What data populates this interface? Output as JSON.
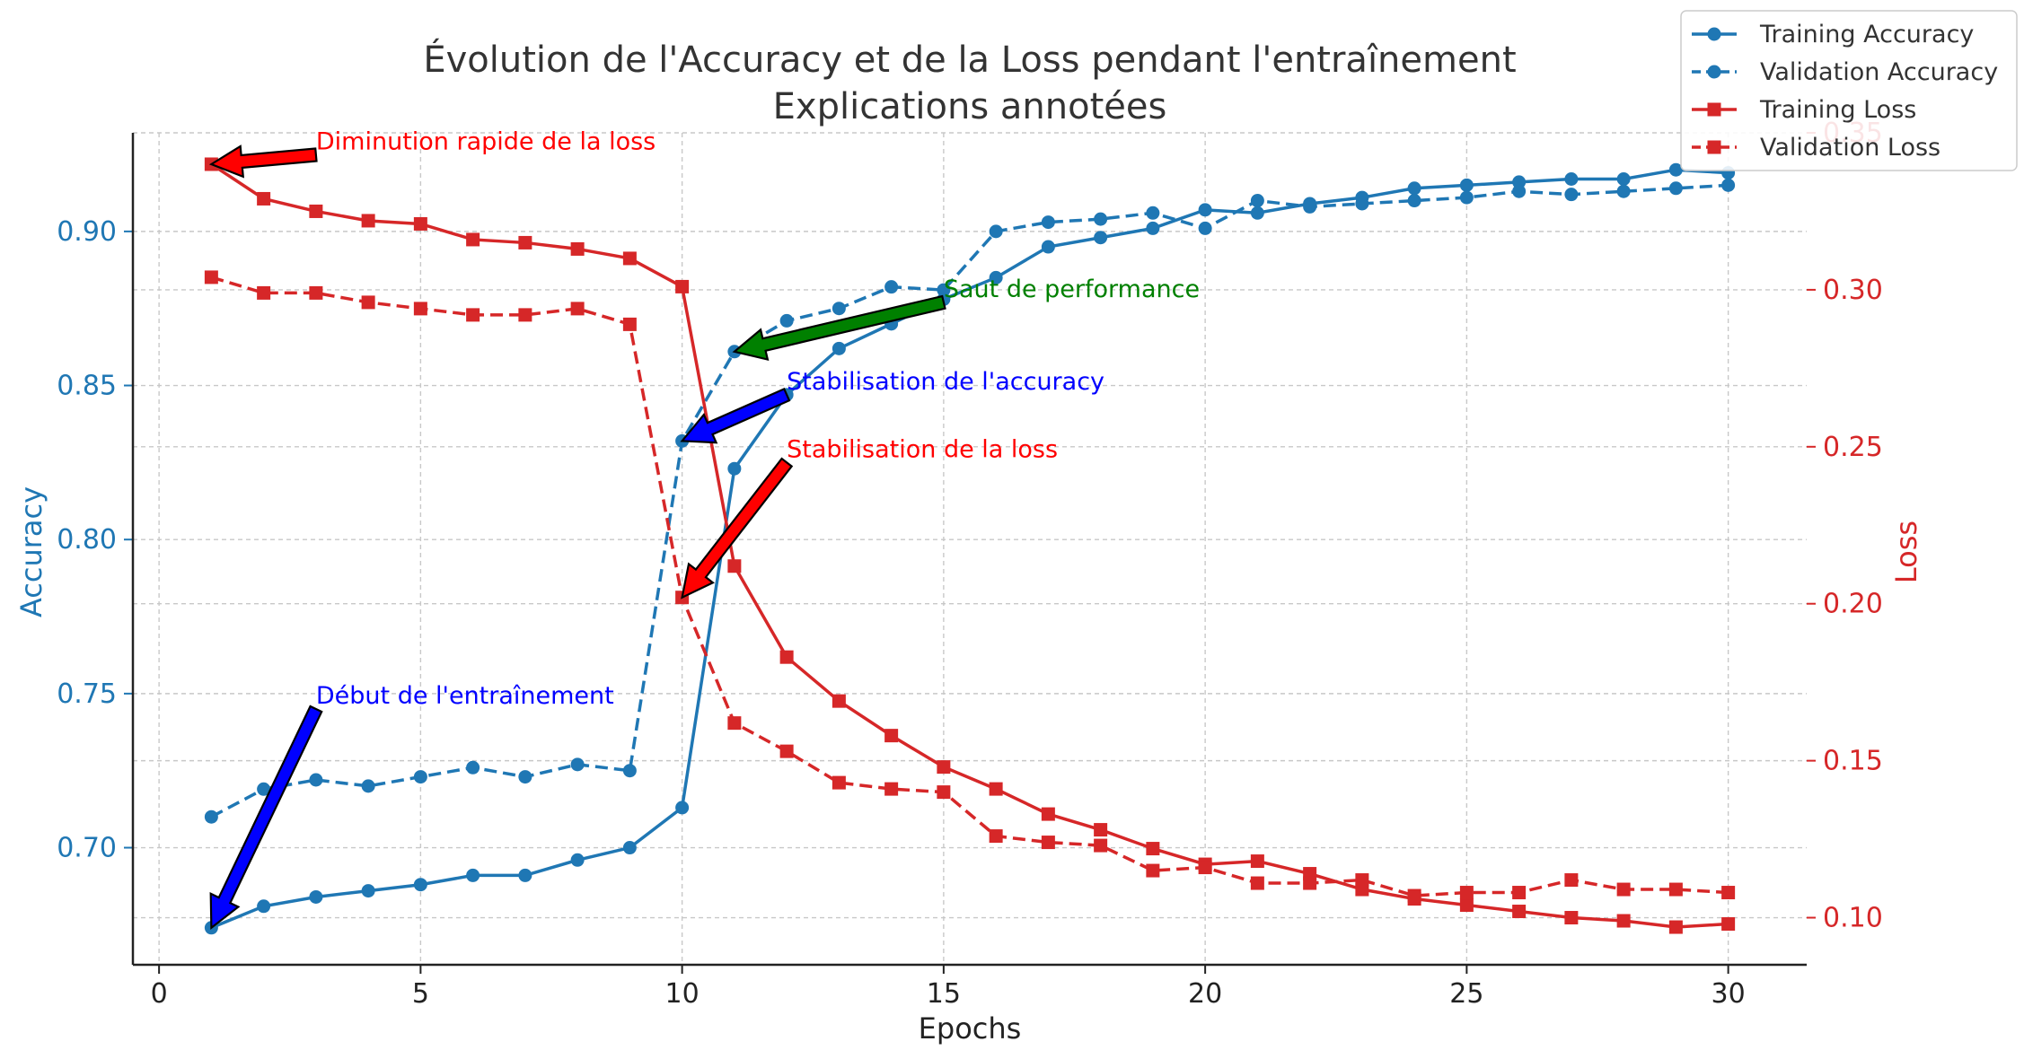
{
  "chart_data": {
    "type": "line",
    "title": "Évolution de l'Accuracy et de la Loss pendant l'entraînement",
    "subtitle": "Explications annotées",
    "xlabel": "Epochs",
    "ylabel_left": "Accuracy",
    "ylabel_right": "Loss",
    "xlim": [
      -0.5,
      31.5
    ],
    "ylim_left": [
      0.662,
      0.932
    ],
    "ylim_right": [
      0.085,
      0.35
    ],
    "xticks": [
      0,
      5,
      10,
      15,
      20,
      25,
      30
    ],
    "yticks_left": [
      "0.70",
      "0.75",
      "0.80",
      "0.85",
      "0.90"
    ],
    "yticks_right": [
      "0.10",
      "0.15",
      "0.20",
      "0.25",
      "0.30",
      "0.35"
    ],
    "grid": true,
    "legend_position": "top-right",
    "x": [
      1,
      2,
      3,
      4,
      5,
      6,
      7,
      8,
      9,
      10,
      11,
      12,
      13,
      14,
      15,
      16,
      17,
      18,
      19,
      20,
      21,
      22,
      23,
      24,
      25,
      26,
      27,
      28,
      29,
      30
    ],
    "series": [
      {
        "name": "Training Accuracy",
        "axis": "left",
        "style": "solid",
        "marker": "circle",
        "color": "#1f77b4",
        "values": [
          0.674,
          0.681,
          0.684,
          0.686,
          0.688,
          0.691,
          0.691,
          0.696,
          0.7,
          0.713,
          0.823,
          0.847,
          0.862,
          0.87,
          0.878,
          0.885,
          0.895,
          0.898,
          0.901,
          0.907,
          0.906,
          0.909,
          0.911,
          0.914,
          0.915,
          0.916,
          0.917,
          0.917,
          0.92,
          0.919
        ]
      },
      {
        "name": "Validation Accuracy",
        "axis": "left",
        "style": "dashed",
        "marker": "circle",
        "color": "#1f77b4",
        "values": [
          0.71,
          0.719,
          0.722,
          0.72,
          0.723,
          0.726,
          0.723,
          0.727,
          0.725,
          0.832,
          0.861,
          0.871,
          0.875,
          0.882,
          0.881,
          0.9,
          0.903,
          0.904,
          0.906,
          0.901,
          0.91,
          0.908,
          0.909,
          0.91,
          0.911,
          0.913,
          0.912,
          0.913,
          0.914,
          0.915
        ]
      },
      {
        "name": "Training Loss",
        "axis": "right",
        "style": "solid",
        "marker": "square",
        "color": "#d62728",
        "values": [
          0.34,
          0.329,
          0.325,
          0.322,
          0.321,
          0.316,
          0.315,
          0.313,
          0.31,
          0.301,
          0.212,
          0.183,
          0.169,
          0.158,
          0.148,
          0.141,
          0.133,
          0.128,
          0.122,
          0.117,
          0.118,
          0.114,
          0.109,
          0.106,
          0.104,
          0.102,
          0.1,
          0.099,
          0.097,
          0.098
        ]
      },
      {
        "name": "Validation Loss",
        "axis": "right",
        "style": "dashed",
        "marker": "square",
        "color": "#d62728",
        "values": [
          0.304,
          0.299,
          0.299,
          0.296,
          0.294,
          0.292,
          0.292,
          0.294,
          0.289,
          0.202,
          0.162,
          0.153,
          0.143,
          0.141,
          0.14,
          0.126,
          0.124,
          0.123,
          0.115,
          0.116,
          0.111,
          0.111,
          0.112,
          0.107,
          0.108,
          0.108,
          0.112,
          0.109,
          0.109,
          0.108
        ]
      }
    ],
    "annotations": [
      {
        "text": "Diminution rapide de la loss",
        "color": "#ff0000",
        "arrow_fill": "#ff0000",
        "axis": "right",
        "text_x": 3,
        "text_y": 0.343,
        "point_x": 1,
        "point_y": 0.34
      },
      {
        "text": "Saut de performance",
        "color": "#008000",
        "arrow_fill": "#008000",
        "axis": "left",
        "text_x": 15,
        "text_y": 0.877,
        "point_x": 11,
        "point_y": 0.861
      },
      {
        "text": "Stabilisation de l'accuracy",
        "color": "#0000ff",
        "arrow_fill": "#0000ff",
        "axis": "left",
        "text_x": 12,
        "text_y": 0.847,
        "point_x": 10,
        "point_y": 0.832
      },
      {
        "text": "Stabilisation de la loss",
        "color": "#ff0000",
        "arrow_fill": "#ff0000",
        "axis": "right",
        "text_x": 12,
        "text_y": 0.245,
        "point_x": 10,
        "point_y": 0.202
      },
      {
        "text": "Début de l'entraînement",
        "color": "#0000ff",
        "arrow_fill": "#0000ff",
        "axis": "left",
        "text_x": 3,
        "text_y": 0.745,
        "point_x": 1,
        "point_y": 0.674
      }
    ]
  }
}
